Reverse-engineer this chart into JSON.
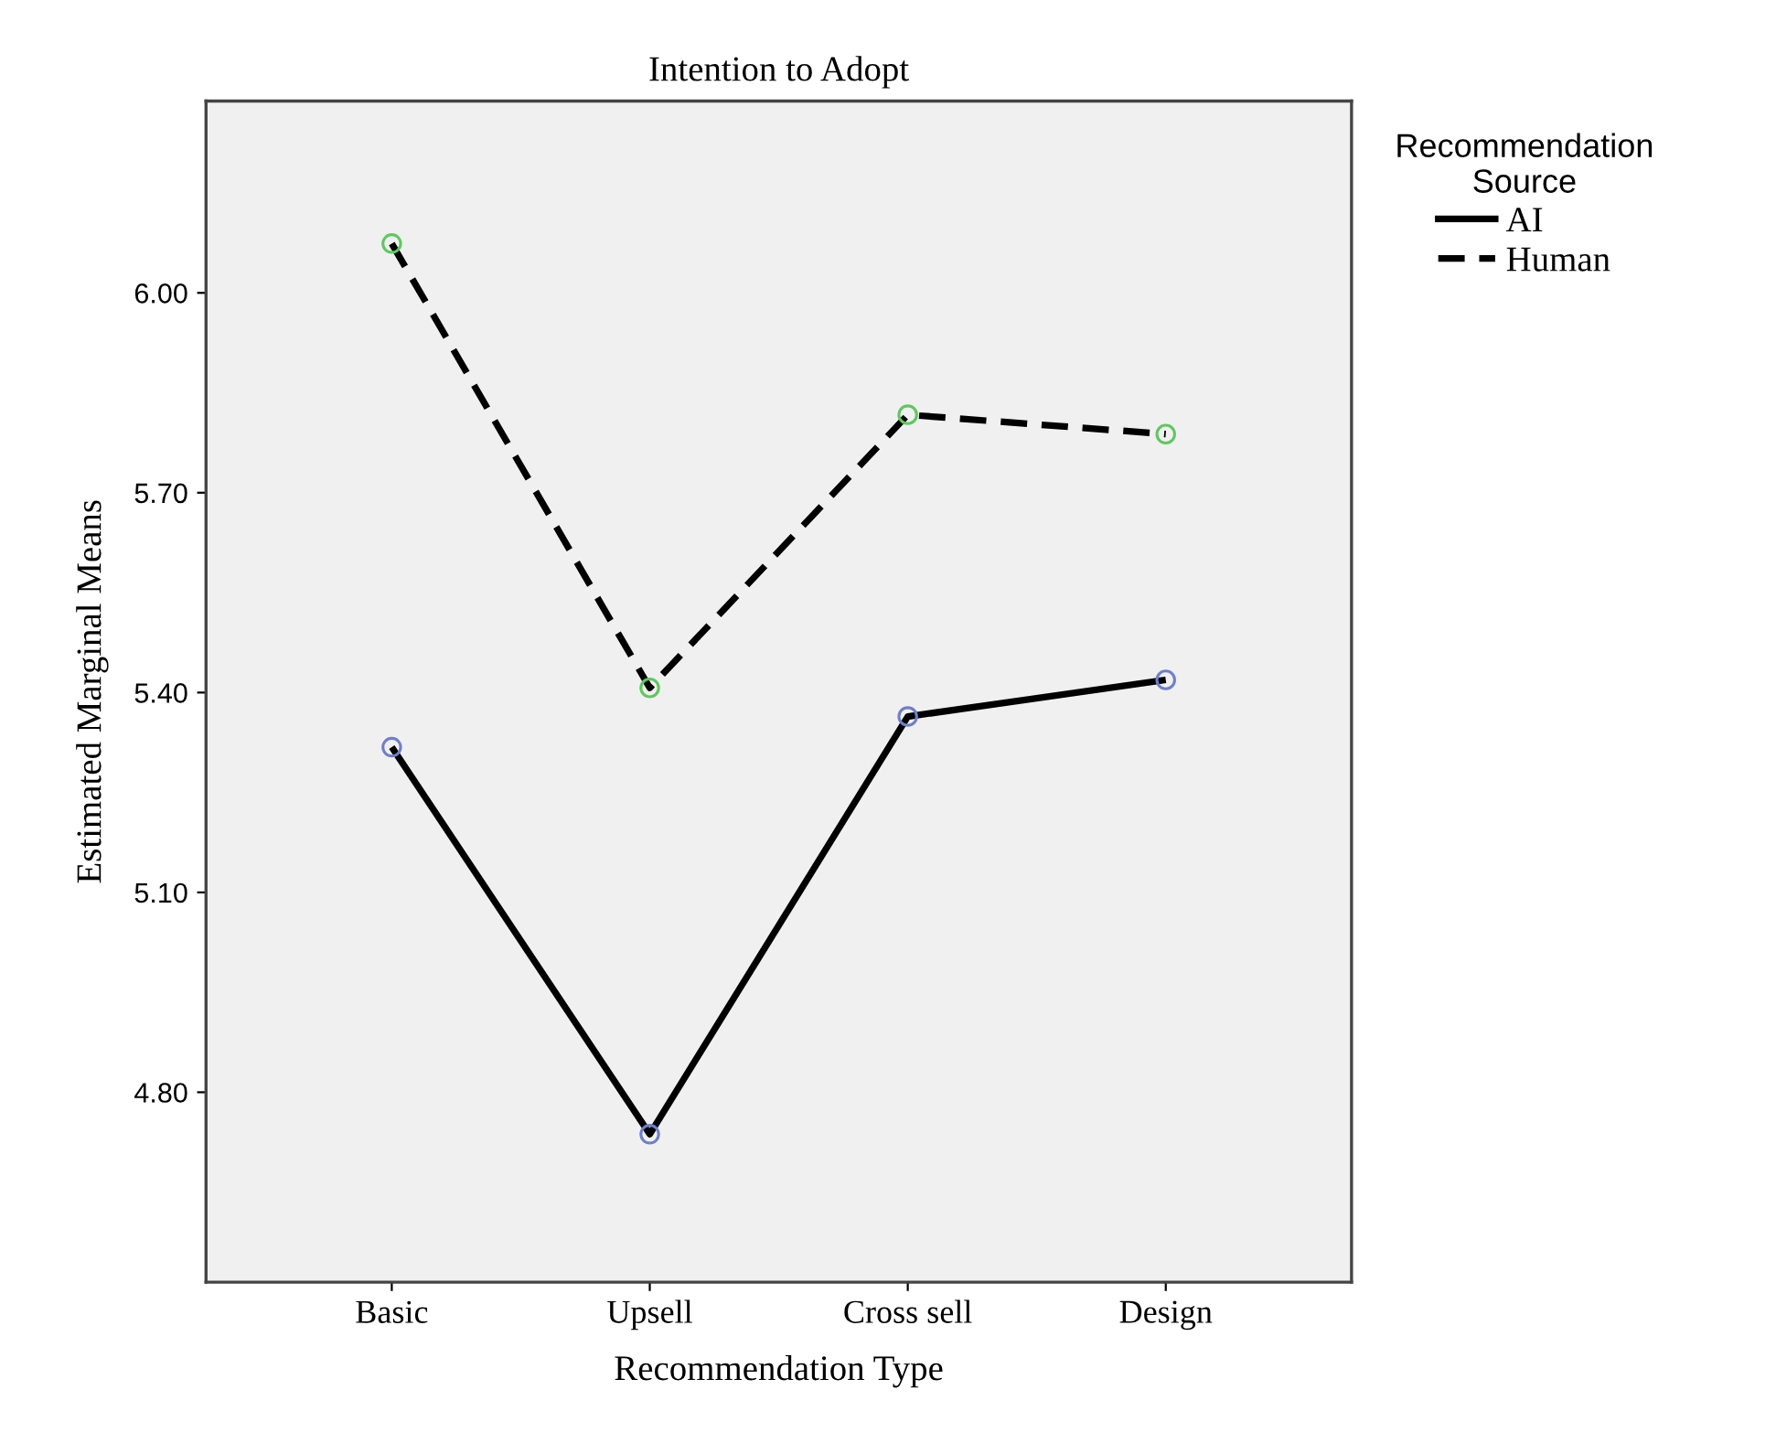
{
  "chart_data": {
    "type": "line",
    "title": "Intention to Adopt",
    "xlabel": "Recommendation Type",
    "ylabel": "Estimated Marginal Means",
    "legend_title": "Recommendation\nSource",
    "categories": [
      "Basic",
      "Upsell",
      "Cross sell",
      "Design"
    ],
    "series": [
      {
        "name": "AI",
        "color": "#000000",
        "line_style": "solid",
        "colors": [
          "#6f7fc8",
          "#6f7fc8",
          "#6f7fc8",
          "#6f7fc8"
        ],
        "values": [
          5.318,
          4.737,
          5.364,
          5.419
        ]
      },
      {
        "name": "Human",
        "color": "#000000",
        "line_style": "dashed",
        "colors": [
          "#5fc85f",
          "#5fc85f",
          "#5fc85f",
          "#5fc85f"
        ],
        "values": [
          6.074,
          5.407,
          5.817,
          5.788
        ]
      }
    ],
    "ylim": [
      4.515,
      6.288
    ],
    "yticks": [
      {
        "value": 4.8,
        "label": "4.80"
      },
      {
        "value": 5.1,
        "label": "5.10"
      },
      {
        "value": 5.4,
        "label": "5.40"
      },
      {
        "value": 5.7,
        "label": "5.70"
      },
      {
        "value": 6.0,
        "label": "6.00"
      }
    ],
    "marker": "circle",
    "grid": false,
    "legend": "top right"
  }
}
